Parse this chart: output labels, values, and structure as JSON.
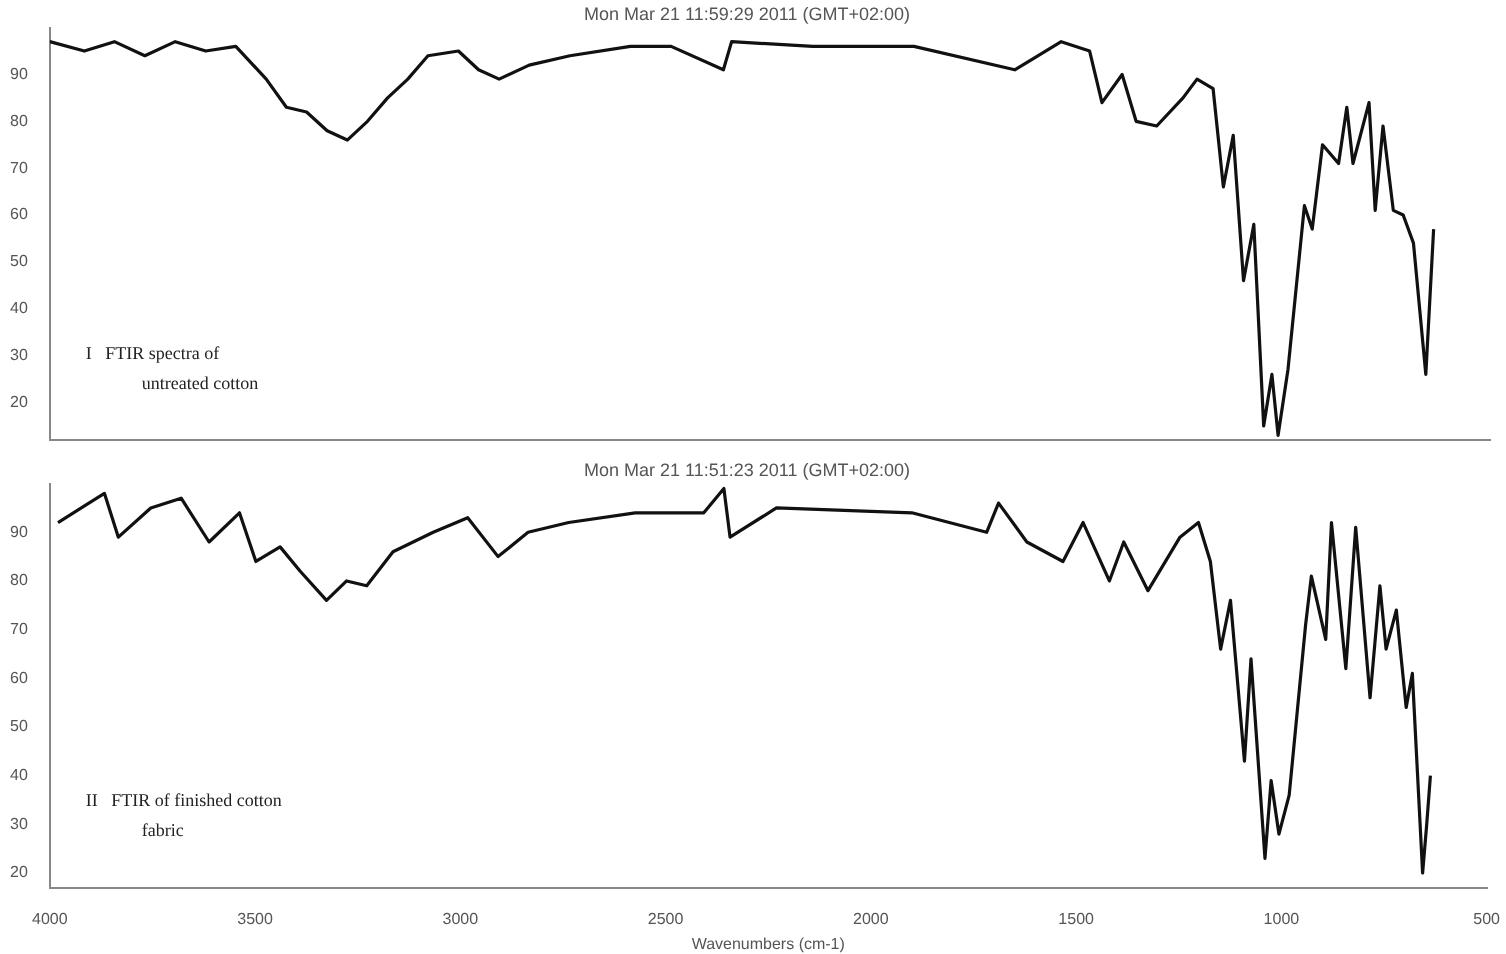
{
  "chart_data": [
    {
      "type": "line",
      "title": "Mon Mar 21 11:59:29 2011 (GMT+02:00)",
      "annotations": [
        "I   FTIR spectra of",
        "untreated cotton"
      ],
      "x": [
        4000,
        3916,
        3843,
        3769,
        3695,
        3621,
        3548,
        3474,
        3425,
        3376,
        3326,
        3277,
        3228,
        3179,
        3130,
        3081,
        3007,
        2958,
        2908,
        2835,
        2736,
        2589,
        2490,
        2363,
        2343,
        2146,
        1900,
        1655,
        1542,
        1473,
        1443,
        1394,
        1360,
        1310,
        1246,
        1212,
        1173,
        1148,
        1124,
        1099,
        1074,
        1050,
        1030,
        1015,
        991,
        951,
        932,
        907,
        868,
        848,
        833,
        794,
        779,
        760,
        735,
        711,
        686,
        656,
        637
      ],
      "series": [
        {
          "color": "#111111",
          "values": [
            97,
            95,
            97,
            94,
            97,
            95,
            96,
            89,
            83,
            82,
            78,
            76,
            80,
            85,
            89,
            94,
            95,
            91,
            89,
            92,
            94,
            96,
            96,
            91,
            97,
            96,
            96,
            91,
            97,
            95,
            84,
            90,
            80,
            79,
            85,
            89,
            87,
            66,
            77,
            46,
            58,
            15,
            26,
            13,
            27,
            62,
            57,
            75,
            71,
            83,
            71,
            84,
            61,
            79,
            61,
            60,
            54,
            26,
            57
          ]
        }
      ],
      "xlim": [
        4000,
        500
      ],
      "xticks": [
        4000,
        3500,
        3000,
        2500,
        2000,
        1500,
        1000,
        500
      ],
      "ylim": [
        12,
        100
      ],
      "yticks": [
        20,
        30,
        40,
        50,
        60,
        70,
        80,
        90
      ],
      "tick_labels": "y",
      "grid": false,
      "legend": false,
      "marker": "none",
      "line_style": "solid"
    },
    {
      "type": "line",
      "title": "Mon Mar 21 11:51:23 2011 (GMT+02:00)",
      "xlabel": "Wavenumbers (cm-1)",
      "annotations": [
        "II   FTIR of finished cotton",
        "fabric"
      ],
      "x": [
        3980,
        3867,
        3833,
        3754,
        3680,
        3612,
        3538,
        3498,
        3439,
        3390,
        3326,
        3277,
        3228,
        3164,
        3066,
        2982,
        2908,
        2835,
        2736,
        2574,
        2407,
        2358,
        2343,
        2230,
        1900,
        1718,
        1689,
        1620,
        1532,
        1483,
        1419,
        1384,
        1325,
        1247,
        1202,
        1173,
        1148,
        1124,
        1090,
        1074,
        1040,
        1025,
        1006,
        981,
        941,
        927,
        892,
        878,
        843,
        819,
        784,
        760,
        745,
        720,
        696,
        681,
        656,
        646,
        637
      ],
      "series": [
        {
          "color": "#111111",
          "values": [
            92,
            98,
            89,
            95,
            97,
            88,
            94,
            84,
            87,
            82,
            76,
            80,
            79,
            86,
            90,
            93,
            85,
            90,
            92,
            94,
            94,
            99,
            89,
            95,
            94,
            90,
            96,
            88,
            84,
            92,
            80,
            88,
            78,
            89,
            92,
            84,
            66,
            76,
            43,
            64,
            23,
            39,
            28,
            36,
            71,
            81,
            68,
            92,
            62,
            91,
            56,
            79,
            66,
            74,
            54,
            61,
            20,
            30,
            40
          ]
        }
      ],
      "xlim": [
        4000,
        500
      ],
      "xticks": [
        4000,
        3500,
        3000,
        2500,
        2000,
        1500,
        1000,
        500
      ],
      "ylim": [
        17,
        100
      ],
      "yticks": [
        20,
        30,
        40,
        50,
        60,
        70,
        80,
        90
      ],
      "grid": false,
      "legend": false,
      "marker": "none",
      "line_style": "solid"
    }
  ]
}
